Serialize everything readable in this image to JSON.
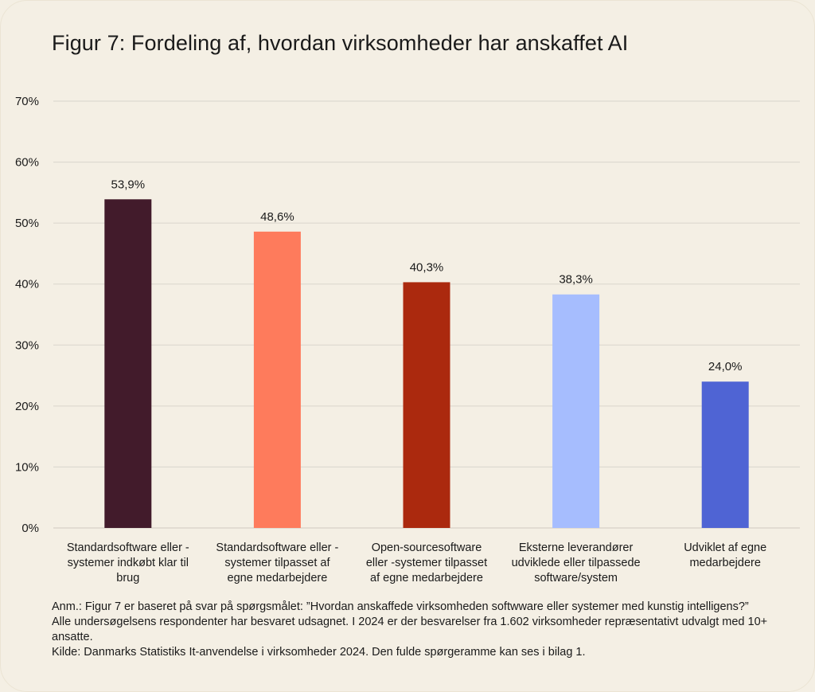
{
  "title": "Figur 7: Fordeling af, hvordan virksomheder har anskaffet AI",
  "colors": {
    "background": "#f4efe4",
    "gridline": "#d9d5cc",
    "bars": [
      "#421b2b",
      "#fe7b5c",
      "#ab290e",
      "#a6bdfe",
      "#4f64d4"
    ]
  },
  "chart_data": {
    "type": "bar",
    "title": "Figur 7: Fordeling af, hvordan virksomheder har anskaffet AI",
    "categories": [
      [
        "Standardsoftware eller -",
        "systemer indkøbt klar til",
        "brug"
      ],
      [
        "Standardsoftware eller -",
        "systemer tilpasset af",
        "egne medarbejdere"
      ],
      [
        "Open-sourcesoftware",
        "eller -systemer tilpasset",
        "af egne medarbejdere"
      ],
      [
        "Eksterne leverandører",
        "udviklede eller tilpassede",
        "software/system"
      ],
      [
        "Udviklet af egne",
        "medarbejdere"
      ]
    ],
    "values": [
      53.9,
      48.6,
      40.3,
      38.3,
      24.0
    ],
    "value_labels": [
      "53,9%",
      "48,6%",
      "40,3%",
      "38,3%",
      "24,0%"
    ],
    "ylim": [
      0,
      70
    ],
    "yticks": [
      0,
      10,
      20,
      30,
      40,
      50,
      60,
      70
    ],
    "ytick_labels": [
      "0%",
      "10%",
      "20%",
      "30%",
      "40%",
      "50%",
      "60%",
      "70%"
    ],
    "xlabel": "",
    "ylabel": "",
    "grid": true,
    "legend": "none"
  },
  "note": {
    "line1": "Anm.: Figur 7 er baseret på svar på spørgsmålet: ”Hvordan anskaffede virksomheden softwware eller systemer med kunstig intelligens?” Alle undersøgelsens respondenter har besvaret udsagnet. I 2024 er der besvarelser fra 1.602 virksomheder repræsentativt udvalgt med 10+ ansatte.",
    "line2": "Kilde: Danmarks Statistiks It-anvendelse i virksomheder 2024. Den fulde spørgeramme kan ses i bilag 1."
  }
}
